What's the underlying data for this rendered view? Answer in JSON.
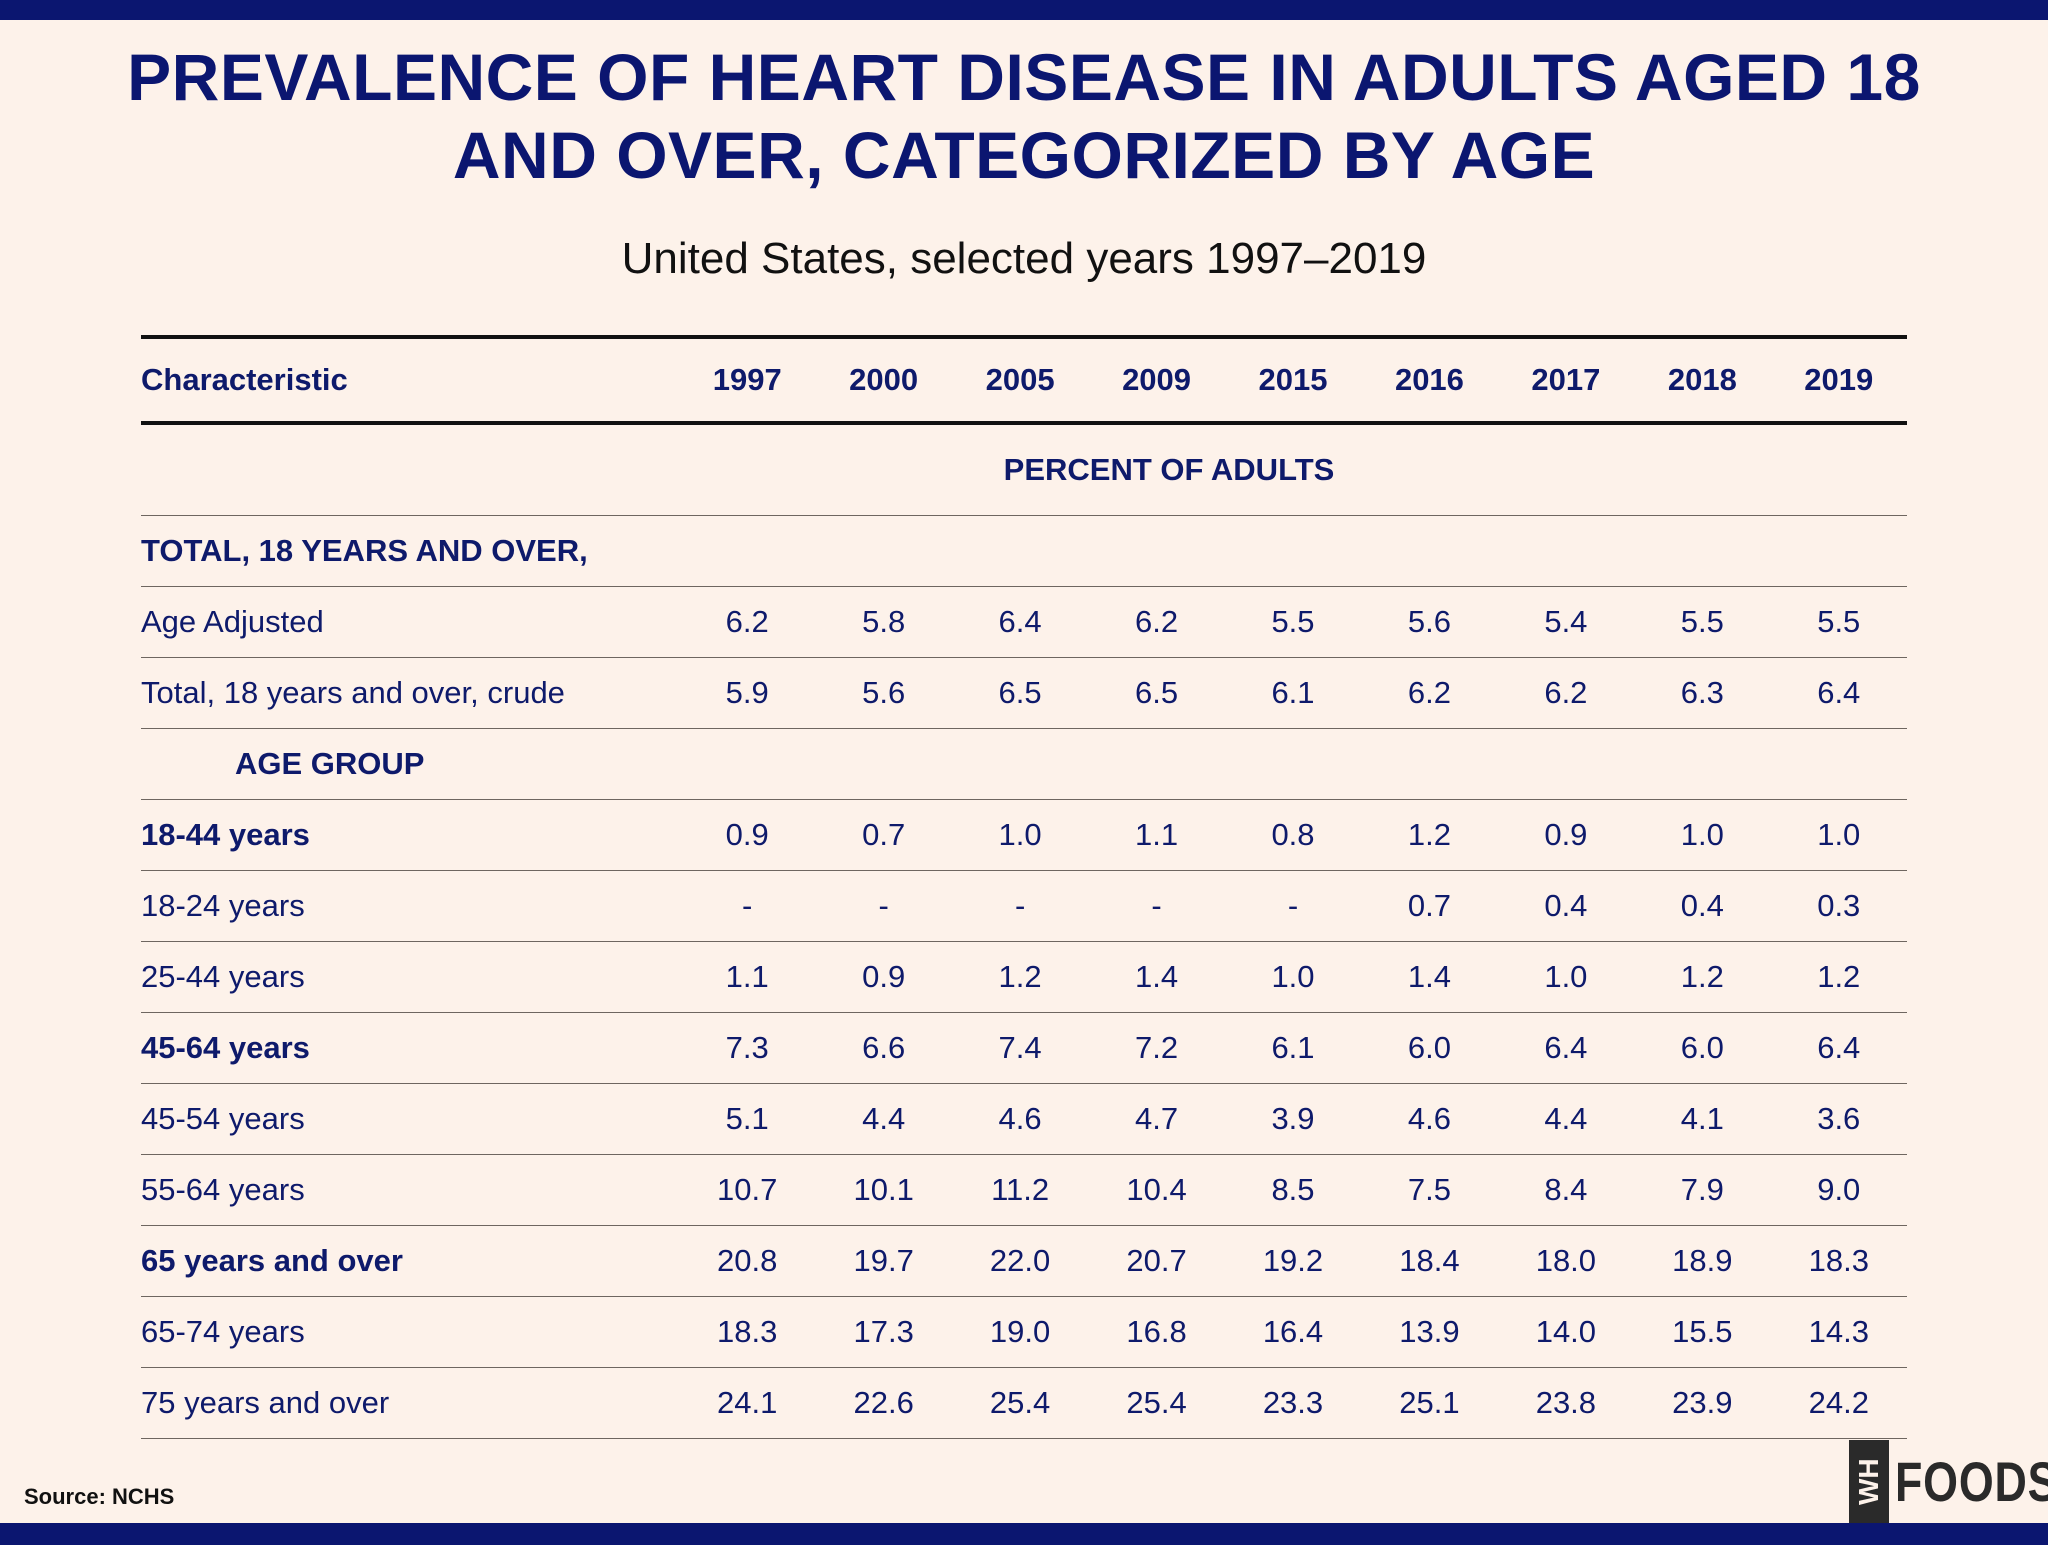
{
  "title_line1": "PREVALENCE OF HEART DISEASE IN ADULTS AGED 18",
  "title_line2": "AND OVER, CATEGORIZED BY AGE",
  "subtitle": "United States, selected years 1997–2019",
  "source": "Source: NCHS",
  "logo": {
    "box": "WH",
    "text": "FOODS"
  },
  "colors": {
    "navy": "#0b1670",
    "background": "#fdf2ea"
  },
  "chart_data": {
    "type": "table",
    "title": "PREVALENCE OF HEART DISEASE IN ADULTS AGED 18 AND OVER, CATEGORIZED BY AGE",
    "subtitle": "United States, selected years 1997–2019",
    "header": "Characteristic",
    "columns": [
      "1997",
      "2000",
      "2005",
      "2009",
      "2015",
      "2016",
      "2017",
      "2018",
      "2019"
    ],
    "unit": "PERCENT OF ADULTS",
    "rows": [
      {
        "label": "TOTAL, 18 YEARS AND OVER,",
        "style": "section",
        "values": []
      },
      {
        "label": "Age Adjusted",
        "style": "normal",
        "values": [
          "6.2",
          "5.8",
          "6.4",
          "6.2",
          "5.5",
          "5.6",
          "5.4",
          "5.5",
          "5.5"
        ]
      },
      {
        "label": "Total, 18 years and over, crude",
        "style": "normal",
        "values": [
          "5.9",
          "5.6",
          "6.5",
          "6.5",
          "6.1",
          "6.2",
          "6.2",
          "6.3",
          "6.4"
        ]
      },
      {
        "label": "AGE GROUP",
        "style": "group",
        "values": []
      },
      {
        "label": "18-44 years",
        "style": "bold",
        "values": [
          "0.9",
          "0.7",
          "1.0",
          "1.1",
          "0.8",
          "1.2",
          "0.9",
          "1.0",
          "1.0"
        ]
      },
      {
        "label": "18-24 years",
        "style": "normal",
        "values": [
          "-",
          "-",
          "-",
          "-",
          "-",
          "0.7",
          "0.4",
          "0.4",
          "0.3"
        ]
      },
      {
        "label": "25-44 years",
        "style": "normal",
        "values": [
          "1.1",
          "0.9",
          "1.2",
          "1.4",
          "1.0",
          "1.4",
          "1.0",
          "1.2",
          "1.2"
        ]
      },
      {
        "label": "45-64 years",
        "style": "bold",
        "values": [
          "7.3",
          "6.6",
          "7.4",
          "7.2",
          "6.1",
          "6.0",
          "6.4",
          "6.0",
          "6.4"
        ]
      },
      {
        "label": "45-54 years",
        "style": "normal",
        "values": [
          "5.1",
          "4.4",
          "4.6",
          "4.7",
          "3.9",
          "4.6",
          "4.4",
          "4.1",
          "3.6"
        ]
      },
      {
        "label": "55-64 years",
        "style": "normal",
        "values": [
          "10.7",
          "10.1",
          "11.2",
          "10.4",
          "8.5",
          "7.5",
          "8.4",
          "7.9",
          "9.0"
        ]
      },
      {
        "label": "65 years and over",
        "style": "bold",
        "values": [
          "20.8",
          "19.7",
          "22.0",
          "20.7",
          "19.2",
          "18.4",
          "18.0",
          "18.9",
          "18.3"
        ]
      },
      {
        "label": "65-74 years",
        "style": "normal",
        "values": [
          "18.3",
          "17.3",
          "19.0",
          "16.8",
          "16.4",
          "13.9",
          "14.0",
          "15.5",
          "14.3"
        ]
      },
      {
        "label": "75 years and over",
        "style": "normal",
        "values": [
          "24.1",
          "22.6",
          "25.4",
          "25.4",
          "23.3",
          "25.1",
          "23.8",
          "23.9",
          "24.2"
        ]
      }
    ]
  }
}
